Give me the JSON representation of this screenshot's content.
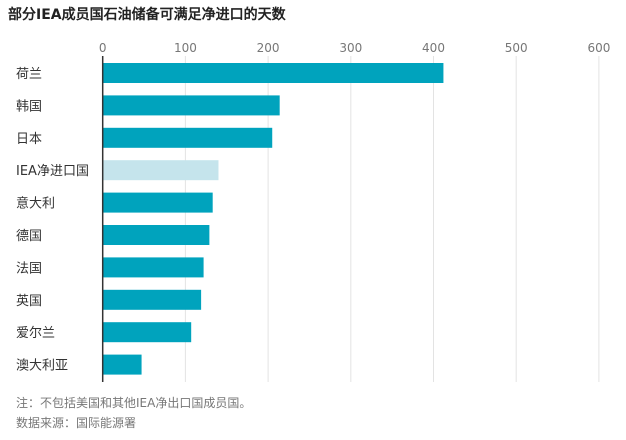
{
  "chart_data": {
    "type": "bar",
    "orientation": "horizontal",
    "title": "部分IEA成员国石油储备可满足净进口的天数",
    "categories": [
      "荷兰",
      "韩国",
      "日本",
      "IEA净进口国",
      "意大利",
      "德国",
      "法国",
      "英国",
      "爱尔兰",
      "澳大利亚"
    ],
    "values": [
      412,
      214,
      205,
      140,
      133,
      129,
      122,
      119,
      107,
      47
    ],
    "highlight": "IEA净进口国",
    "xlim": [
      0,
      600
    ],
    "xticks": [
      0,
      100,
      200,
      300,
      400,
      500,
      600
    ],
    "xlabel": "",
    "ylabel": "",
    "grid": true,
    "axis_position": "top",
    "colors": {
      "bar": "#00a3bd",
      "highlight": "#c5e4ec",
      "grid": "#e3e3e3",
      "tick": "#777777"
    }
  },
  "notes": {
    "note": "注：不包括美国和其他IEA净出口国成员国。",
    "source": "数据来源：国际能源署"
  }
}
